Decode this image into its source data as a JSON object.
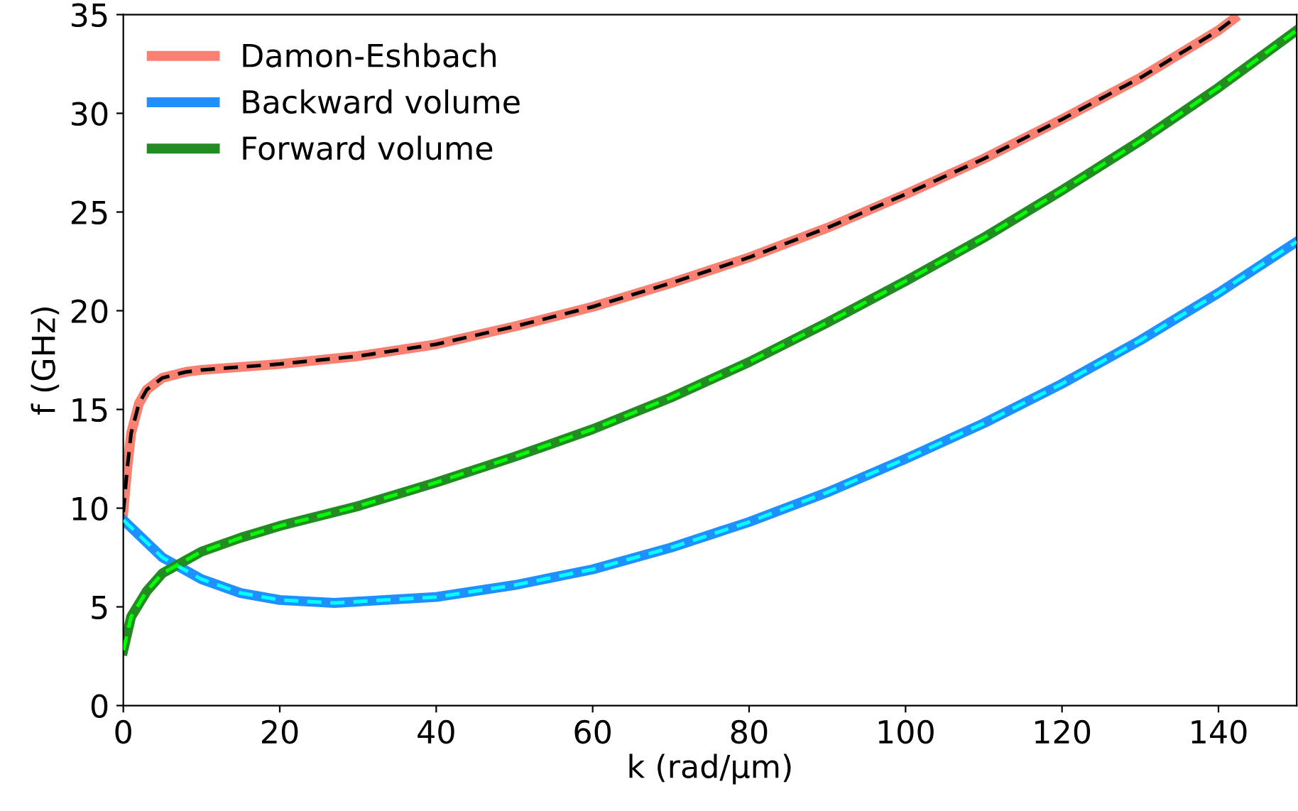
{
  "chart_data": {
    "type": "line",
    "xlabel": "k (rad/μm)",
    "ylabel": "f (GHz)",
    "xlim": [
      0,
      150
    ],
    "ylim": [
      0,
      35
    ],
    "xticks": [
      0,
      20,
      40,
      60,
      80,
      100,
      120,
      140
    ],
    "yticks": [
      0,
      5,
      10,
      15,
      20,
      25,
      30,
      35
    ],
    "grid": false,
    "legend": "top left",
    "marker": "none",
    "series": [
      {
        "name": "Damon-Eshbach",
        "color": "#fa8072",
        "line_style": "solid",
        "x": [
          0,
          0.5,
          1,
          2,
          3,
          5,
          8,
          10,
          20,
          30,
          40,
          50,
          60,
          70,
          80,
          90,
          100,
          110,
          120,
          130,
          140,
          142
        ],
        "values": [
          9.8,
          12,
          13.8,
          15.3,
          16.0,
          16.6,
          16.9,
          17.0,
          17.3,
          17.7,
          18.3,
          19.2,
          20.2,
          21.4,
          22.7,
          24.2,
          25.9,
          27.7,
          29.7,
          31.8,
          34.2,
          34.8
        ]
      },
      {
        "name": "Backward volume",
        "color": "#1e90ff",
        "line_style": "solid",
        "x": [
          0,
          5,
          10,
          15,
          20,
          27,
          40,
          50,
          60,
          70,
          80,
          90,
          100,
          110,
          120,
          130,
          140,
          150
        ],
        "values": [
          9.4,
          7.5,
          6.4,
          5.7,
          5.35,
          5.2,
          5.5,
          6.1,
          6.9,
          8.0,
          9.3,
          10.8,
          12.5,
          14.3,
          16.3,
          18.5,
          20.9,
          23.5
        ]
      },
      {
        "name": "Forward volume",
        "color": "#228b22",
        "line_style": "solid",
        "x": [
          0,
          1,
          3,
          5,
          10,
          15,
          20,
          30,
          40,
          50,
          60,
          70,
          80,
          90,
          100,
          110,
          120,
          130,
          140,
          150
        ],
        "values": [
          2.8,
          4.5,
          5.8,
          6.7,
          7.8,
          8.5,
          9.1,
          10.1,
          11.3,
          12.6,
          14.0,
          15.6,
          17.4,
          19.4,
          21.5,
          23.7,
          26.1,
          28.6,
          31.3,
          34.2
        ]
      },
      {
        "color": "#000000",
        "line_style": "dashed",
        "x": [
          0,
          0.5,
          1,
          2,
          3,
          5,
          8,
          10,
          20,
          30,
          40,
          50,
          60,
          70,
          80,
          90,
          100,
          110,
          120,
          130,
          140,
          142
        ],
        "values": [
          9.8,
          12,
          13.8,
          15.3,
          16.0,
          16.6,
          16.9,
          17.0,
          17.3,
          17.7,
          18.3,
          19.2,
          20.2,
          21.4,
          22.7,
          24.2,
          25.9,
          27.7,
          29.7,
          31.8,
          34.2,
          34.8
        ]
      },
      {
        "color": "#00ffff",
        "line_style": "dashed",
        "x": [
          0,
          5,
          10,
          15,
          20,
          27,
          40,
          50,
          60,
          70,
          80,
          90,
          100,
          110,
          120,
          130,
          140,
          150
        ],
        "values": [
          9.4,
          7.5,
          6.4,
          5.7,
          5.35,
          5.2,
          5.5,
          6.1,
          6.9,
          8.0,
          9.3,
          10.8,
          12.5,
          14.3,
          16.3,
          18.5,
          20.9,
          23.5
        ]
      },
      {
        "color": "#00ff00",
        "line_style": "dashed",
        "x": [
          0,
          1,
          3,
          5,
          10,
          15,
          20,
          30,
          40,
          50,
          60,
          70,
          80,
          90,
          100,
          110,
          120,
          130,
          140,
          150
        ],
        "values": [
          2.8,
          4.5,
          5.8,
          6.7,
          7.8,
          8.5,
          9.1,
          10.1,
          11.3,
          12.6,
          14.0,
          15.6,
          17.4,
          19.4,
          21.5,
          23.7,
          26.1,
          28.6,
          31.3,
          34.2
        ]
      }
    ]
  }
}
